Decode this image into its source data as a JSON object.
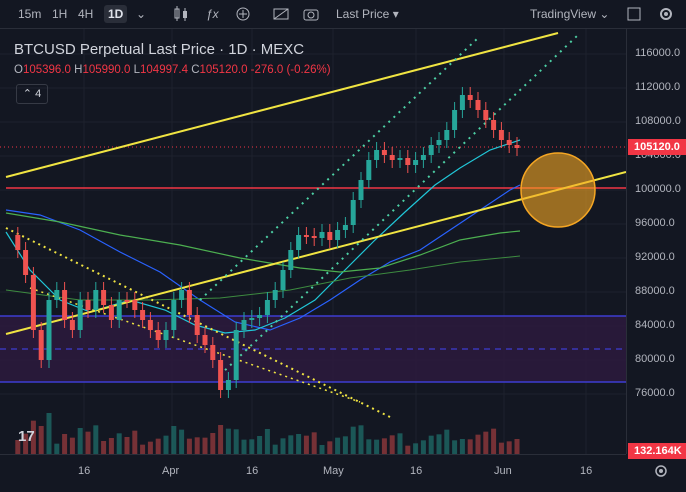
{
  "toolbar": {
    "intervals": [
      "15m",
      "1H",
      "4H",
      "1D"
    ],
    "active_interval": "1D",
    "price_source": "Last Price",
    "brand": "TradingView"
  },
  "legend": {
    "title": "BTCUSD Perpetual Last Price · 1D · MEXC",
    "open_label": "O",
    "open": "105396.0",
    "high_label": "H",
    "high": "105990.0",
    "low_label": "L",
    "low": "104997.4",
    "close_label": "C",
    "close": "105120.0",
    "change": "-276.0 (-0.26%)",
    "indicator_count": "4"
  },
  "price_axis": {
    "ticks": [
      "116000.0",
      "112000.0",
      "108000.0",
      "104000.0",
      "100000.0",
      "96000.0",
      "92000.0",
      "88000.0",
      "84000.0",
      "80000.0",
      "76000.0"
    ],
    "last_price_tag": "105120.0",
    "volume_tag": "132.164K"
  },
  "time_axis": {
    "ticks": [
      "16",
      "Apr",
      "16",
      "May",
      "16",
      "Jun",
      "16"
    ]
  },
  "colors": {
    "background": "#131722",
    "up": "#26a69a",
    "down": "#ef5350",
    "trendline": "#f0e442",
    "support_line": "#f23645",
    "range_band": "#3b1f4a",
    "range_lines": "#3d3dd1",
    "highlight_circle": "#f5a623"
  },
  "icons": [
    "candles-icon",
    "indicator-fx-icon",
    "compare-icon",
    "replay-icon",
    "camera-icon",
    "fullscreen-icon",
    "settings-icon",
    "timezone-icon"
  ]
}
